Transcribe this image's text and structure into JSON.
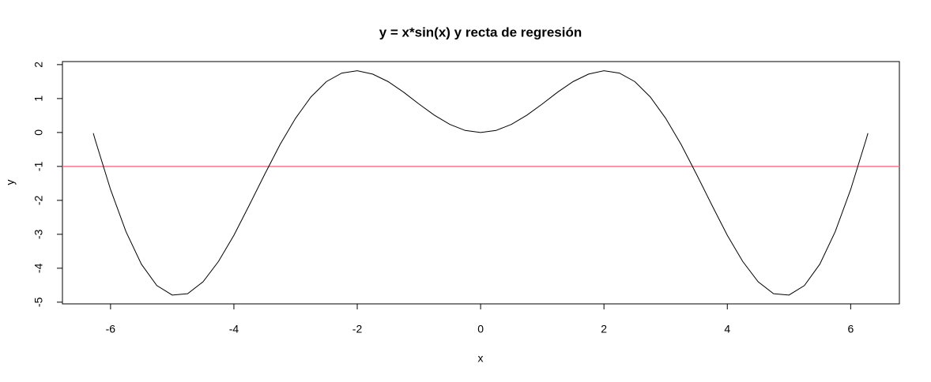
{
  "chart_data": {
    "type": "line",
    "title": "y = x*sin(x) y recta de regresión",
    "x_label": "x",
    "y_label": "y",
    "x": [
      -6.28,
      -6.25,
      -6,
      -5.75,
      -5.5,
      -5.25,
      -5,
      -4.75,
      -4.5,
      -4.25,
      -4,
      -3.75,
      -3.5,
      -3.25,
      -3,
      -2.75,
      -2.5,
      -2.25,
      -2,
      -1.75,
      -1.5,
      -1.25,
      -1,
      -0.75,
      -0.5,
      -0.25,
      0,
      0.25,
      0.5,
      0.75,
      1,
      1.25,
      1.5,
      1.75,
      2,
      2.25,
      2.5,
      2.75,
      3,
      3.25,
      3.5,
      3.75,
      4,
      4.25,
      4.5,
      4.75,
      5,
      5.25,
      5.5,
      5.75,
      6,
      6.25,
      6.28
    ],
    "series": [
      {
        "color": "#000000",
        "values": [
          -0.02,
          -0.21,
          -1.68,
          -2.92,
          -3.88,
          -4.51,
          -4.79,
          -4.75,
          -4.4,
          -3.8,
          -3.03,
          -2.14,
          -1.23,
          -0.35,
          0.42,
          1.05,
          1.5,
          1.75,
          1.82,
          1.72,
          1.5,
          1.19,
          0.84,
          0.51,
          0.24,
          0.06,
          0,
          0.06,
          0.24,
          0.51,
          0.84,
          1.19,
          1.5,
          1.72,
          1.82,
          1.75,
          1.5,
          1.05,
          0.42,
          -0.35,
          -1.23,
          -2.14,
          -3.03,
          -3.8,
          -4.4,
          -4.75,
          -4.79,
          -4.51,
          -3.88,
          -2.92,
          -1.68,
          -0.21,
          -0.02
        ]
      }
    ],
    "regression_line": {
      "intercept": -1,
      "slope": 0,
      "color": "#f8768a"
    },
    "xlim": [
      -6.78,
      6.79
    ],
    "ylim": [
      -5.05,
      2.09
    ],
    "xticks": [
      -6,
      -4,
      -2,
      0,
      2,
      4,
      6
    ],
    "yticks": [
      -5,
      -4,
      -3,
      -2,
      -1,
      0,
      1,
      2
    ]
  }
}
